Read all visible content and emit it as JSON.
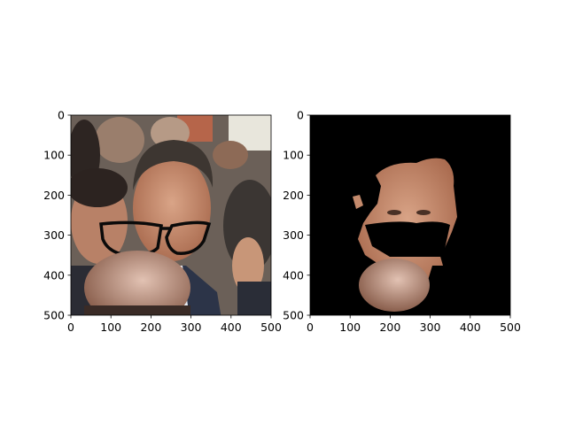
{
  "chart_data": [
    {
      "type": "image",
      "title": "",
      "xlabel": "",
      "ylabel": "",
      "xlim": [
        0,
        500
      ],
      "ylim": [
        500,
        0
      ],
      "xticks": [
        0,
        100,
        200,
        300,
        400,
        500
      ],
      "yticks": [
        0,
        100,
        200,
        300,
        400,
        500
      ],
      "content": "photo of a man in a crowd with black eyeglasses overlay",
      "colors": {
        "background": "#e9e6dc",
        "skin": "#c98c6d",
        "hair": "#3a332e",
        "glasses": "#0a0a0a"
      }
    },
    {
      "type": "image",
      "title": "",
      "xlabel": "",
      "ylabel": "",
      "xlim": [
        0,
        500
      ],
      "ylim": [
        500,
        0
      ],
      "xticks": [
        0,
        100,
        200,
        300,
        400,
        500
      ],
      "yticks": [
        0,
        100,
        200,
        300,
        400,
        500
      ],
      "content": "segmented face/skin region on black background with eye area masked out",
      "colors": {
        "background": "#000000",
        "skin": "#c98c6d"
      }
    }
  ]
}
